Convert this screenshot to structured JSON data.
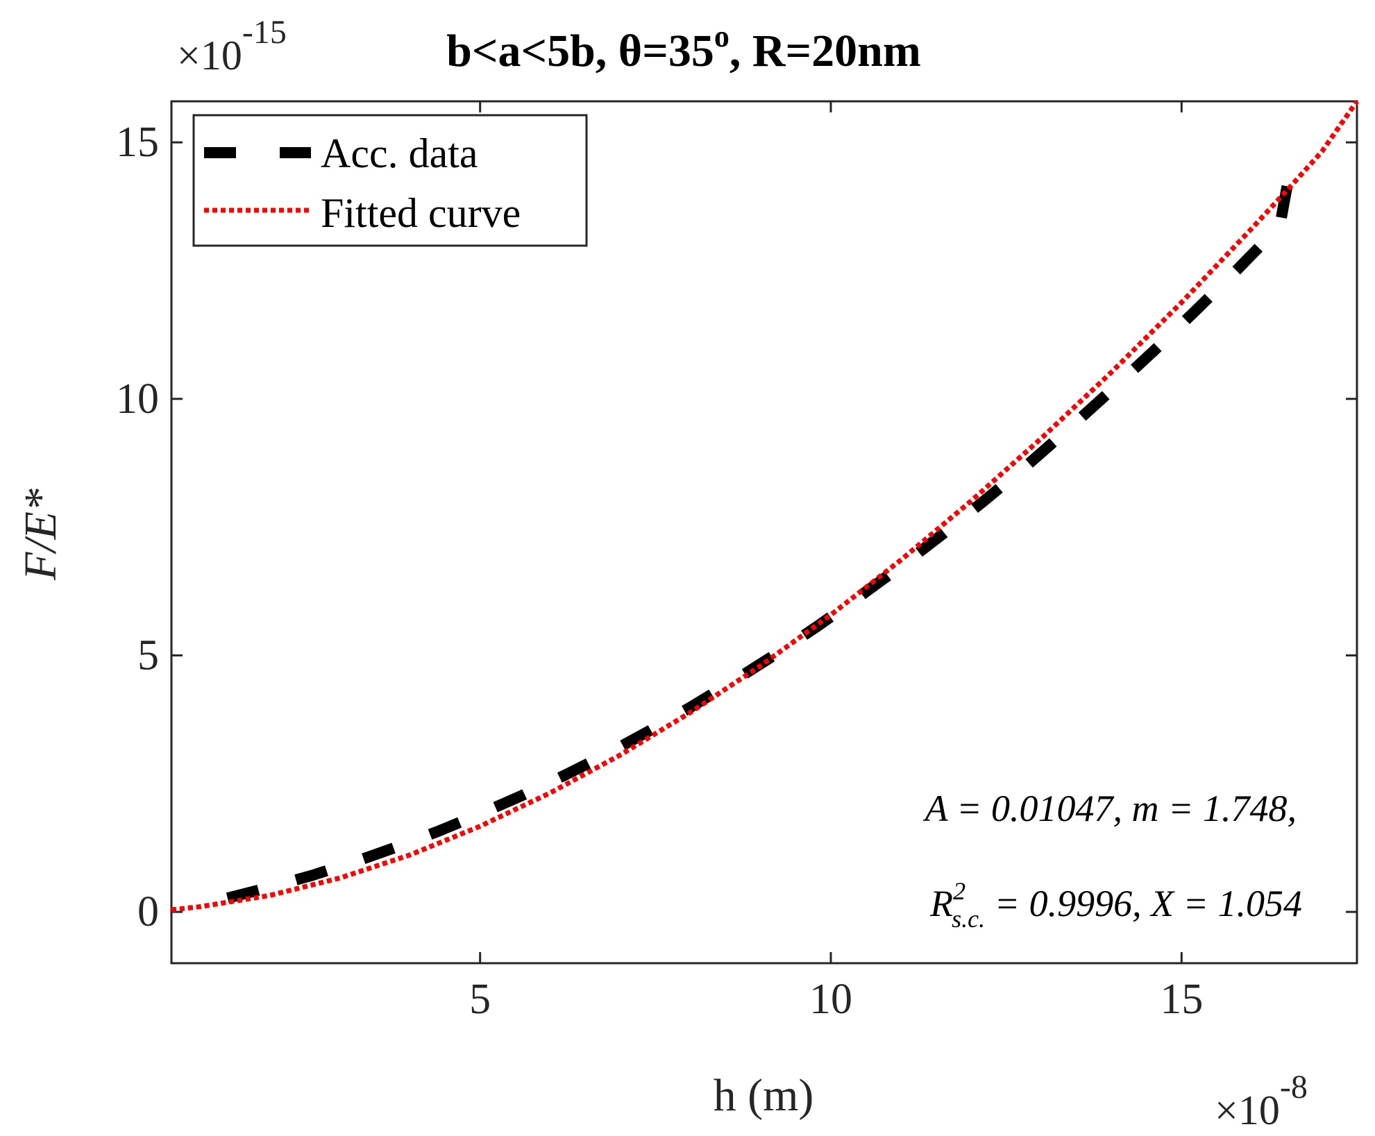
{
  "chart_data": {
    "type": "line",
    "title": "b<a<5b, θ=35",
    "title_sup": "o",
    "title_rest": ", R=20nm",
    "xlabel": "h (m)",
    "ylabel": "F/E*",
    "x_multiplier": "×10",
    "x_multiplier_exp": "-8",
    "y_multiplier": "×10",
    "y_multiplier_exp": "-15",
    "xlim": [
      0.6,
      17.5
    ],
    "ylim": [
      -1,
      15.8
    ],
    "xticks": [
      5,
      10,
      15
    ],
    "yticks": [
      0,
      5,
      10,
      15
    ],
    "legend_position": "top-left",
    "series": [
      {
        "name": "Acc. data",
        "style": "dashed",
        "color": "#000000",
        "x": [
          1.4,
          2.0,
          2.6,
          3.2,
          3.8,
          4.4,
          5.0,
          5.6,
          6.2,
          6.8,
          7.4,
          8.0,
          8.6,
          9.2,
          9.8,
          10.4,
          11.0,
          11.6,
          12.2,
          12.8,
          13.4,
          14.0,
          14.6,
          15.2,
          15.8,
          16.4,
          16.6
        ],
        "values": [
          0.27,
          0.48,
          0.71,
          0.97,
          1.26,
          1.57,
          1.91,
          2.27,
          2.66,
          3.07,
          3.52,
          3.99,
          4.49,
          5.01,
          5.56,
          6.14,
          6.74,
          7.37,
          8.03,
          8.71,
          9.43,
          10.17,
          10.93,
          11.72,
          12.53,
          13.37,
          14.86
        ]
      },
      {
        "name": "Fitted curve",
        "style": "dotted",
        "color": "#ff0000",
        "x": [
          0.6,
          1.0,
          2.0,
          3.0,
          4.0,
          5.0,
          6.0,
          7.0,
          8.0,
          9.0,
          10.0,
          11.0,
          12.0,
          13.0,
          14.0,
          15.0,
          16.0,
          16.5,
          17.0,
          17.5
        ],
        "values": [
          0.04,
          0.1,
          0.32,
          0.66,
          1.11,
          1.67,
          2.32,
          3.06,
          3.89,
          4.8,
          5.79,
          6.86,
          8.01,
          9.23,
          10.52,
          11.88,
          13.32,
          14.06,
          14.82,
          15.8
        ]
      }
    ],
    "annotations": {
      "line1": "A = 0.01047, m = 1.748,",
      "line2_prefix": "R",
      "line2_sup": "2",
      "line2_sub": "s.c.",
      "line2_rest": " = 0.9996,  X = 1.054"
    }
  }
}
